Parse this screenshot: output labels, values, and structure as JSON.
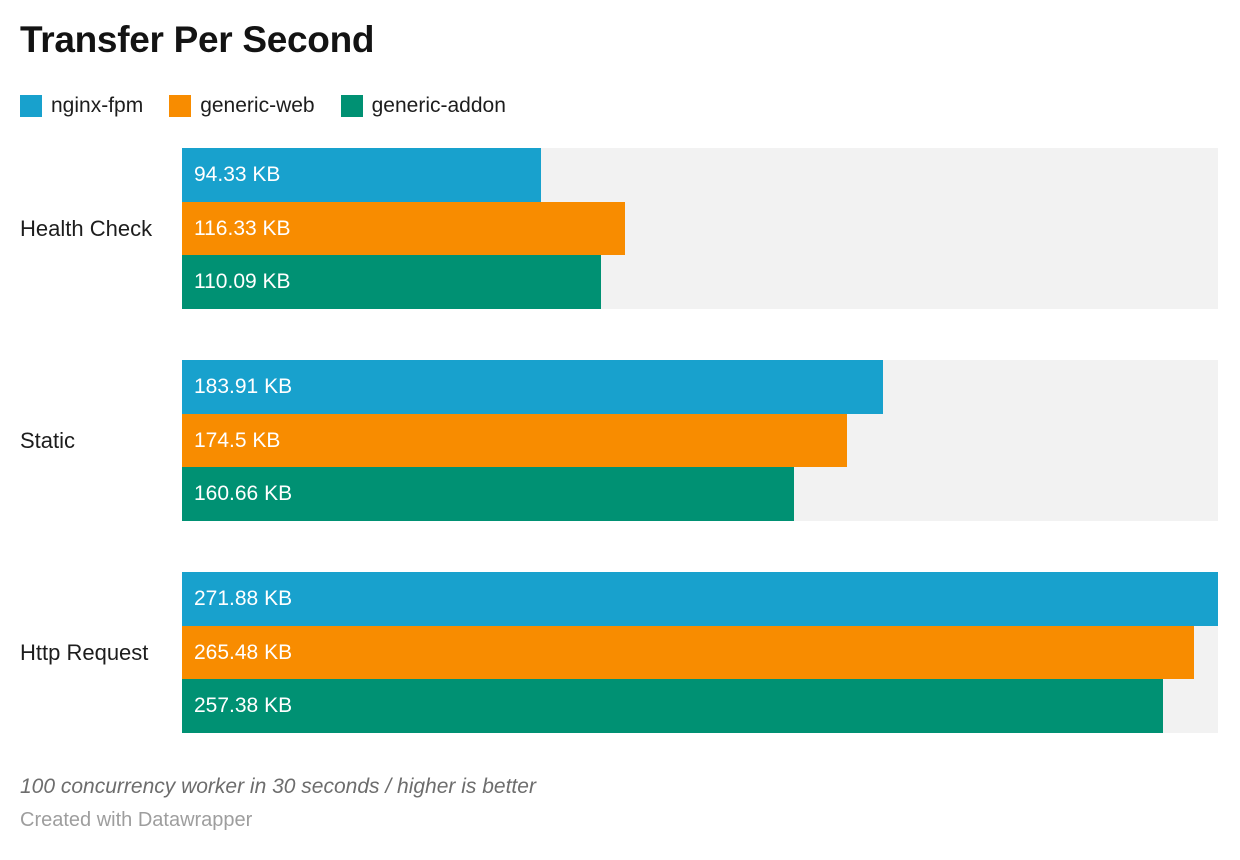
{
  "title": "Transfer Per Second",
  "footer": {
    "note": "100 concurrency worker in 30 seconds / higher is better",
    "credit": "Created with Datawrapper"
  },
  "colors": {
    "track": "#f2f2f2",
    "title_text": "#131313",
    "label_text": "#1d1d1d",
    "value_text": "#ffffff"
  },
  "chart_data": {
    "type": "bar",
    "orientation": "horizontal",
    "unit": "KB",
    "title": "Transfer Per Second",
    "categories": [
      "Health Check",
      "Static",
      "Http Request"
    ],
    "series": [
      {
        "name": "nginx-fpm",
        "color": "#18a1cd",
        "values": [
          94.33,
          183.91,
          271.88
        ],
        "labels": [
          "94.33 KB",
          "183.91 KB",
          "271.88 KB"
        ]
      },
      {
        "name": "generic-web",
        "color": "#f88c00",
        "values": [
          116.33,
          174.5,
          265.48
        ],
        "labels": [
          "116.33 KB",
          "174.5 KB",
          "265.48 KB"
        ]
      },
      {
        "name": "generic-addon",
        "color": "#009173",
        "values": [
          110.09,
          160.66,
          257.38
        ],
        "labels": [
          "110.09 KB",
          "160.66 KB",
          "257.38 KB"
        ]
      }
    ],
    "xlim": [
      0,
      271.88
    ],
    "grid": false,
    "value_labels_inside": true,
    "legend_position": "top"
  }
}
